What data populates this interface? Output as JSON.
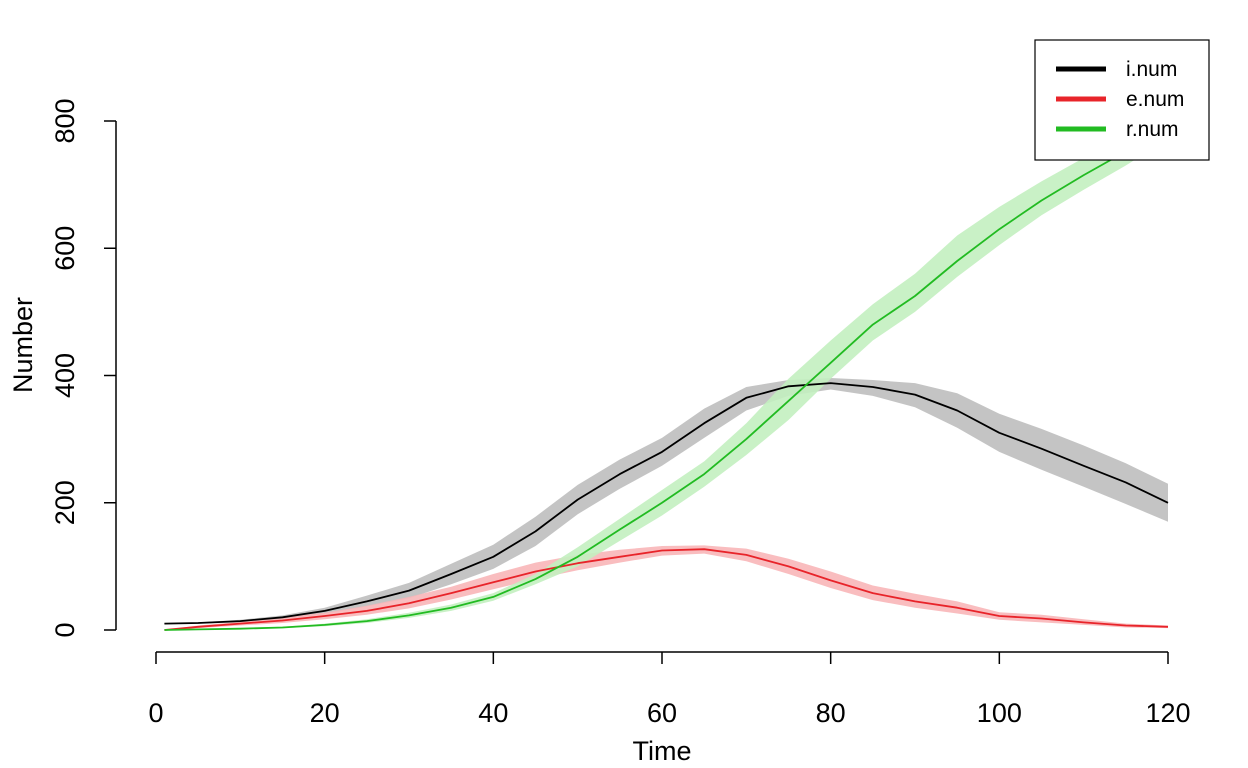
{
  "chart_data": {
    "type": "line",
    "title": "",
    "xlabel": "Time",
    "ylabel": "Number",
    "xlim": [
      0,
      120
    ],
    "ylim": [
      0,
      800
    ],
    "x_ticks": [
      0,
      20,
      40,
      60,
      80,
      100,
      120
    ],
    "y_ticks": [
      0,
      200,
      400,
      600,
      800
    ],
    "grid": false,
    "legend_position": "top-right",
    "x": [
      1,
      5,
      10,
      15,
      20,
      25,
      30,
      35,
      40,
      45,
      50,
      55,
      60,
      65,
      70,
      75,
      80,
      85,
      90,
      95,
      100,
      105,
      110,
      115,
      120
    ],
    "series": [
      {
        "name": "i.num",
        "color": "#000000",
        "band_color": "#bebebe",
        "values": [
          10,
          11,
          14,
          20,
          30,
          45,
          62,
          88,
          115,
          155,
          205,
          245,
          280,
          325,
          365,
          383,
          388,
          382,
          370,
          345,
          310,
          285,
          258,
          232,
          200
        ],
        "lower": [
          10,
          10,
          12,
          17,
          25,
          37,
          50,
          72,
          96,
          132,
          182,
          222,
          258,
          302,
          345,
          368,
          378,
          368,
          350,
          318,
          280,
          252,
          225,
          198,
          170
        ],
        "upper": [
          10,
          12,
          16,
          23,
          35,
          54,
          74,
          104,
          134,
          178,
          228,
          268,
          302,
          348,
          382,
          393,
          396,
          393,
          388,
          372,
          340,
          316,
          290,
          262,
          230
        ]
      },
      {
        "name": "e.num",
        "color": "#e8242a",
        "band_color": "#f8b6b8",
        "values": [
          0,
          5,
          10,
          15,
          22,
          30,
          42,
          58,
          75,
          92,
          105,
          115,
          125,
          127,
          118,
          100,
          78,
          58,
          45,
          35,
          22,
          18,
          12,
          7,
          5
        ],
        "lower": [
          0,
          3,
          7,
          11,
          17,
          24,
          34,
          48,
          64,
          80,
          94,
          106,
          117,
          120,
          108,
          88,
          66,
          47,
          35,
          26,
          16,
          12,
          8,
          4,
          3
        ],
        "upper": [
          0,
          7,
          13,
          20,
          27,
          38,
          52,
          68,
          88,
          106,
          118,
          126,
          132,
          133,
          128,
          112,
          92,
          70,
          57,
          45,
          28,
          24,
          17,
          10,
          7
        ]
      },
      {
        "name": "r.num",
        "color": "#22bb22",
        "band_color": "#c3efc0",
        "values": [
          0,
          1,
          2,
          4,
          8,
          14,
          23,
          35,
          52,
          80,
          115,
          158,
          200,
          245,
          300,
          360,
          420,
          480,
          525,
          580,
          630,
          675,
          715,
          752,
          790
        ],
        "lower": [
          0,
          1,
          2,
          3,
          6,
          11,
          19,
          30,
          46,
          72,
          100,
          140,
          180,
          225,
          275,
          330,
          395,
          455,
          500,
          555,
          605,
          652,
          692,
          730,
          772
        ],
        "upper": [
          0,
          2,
          3,
          5,
          10,
          17,
          27,
          40,
          58,
          88,
          130,
          175,
          220,
          265,
          325,
          395,
          455,
          512,
          560,
          620,
          665,
          705,
          742,
          775,
          810
        ]
      }
    ]
  }
}
